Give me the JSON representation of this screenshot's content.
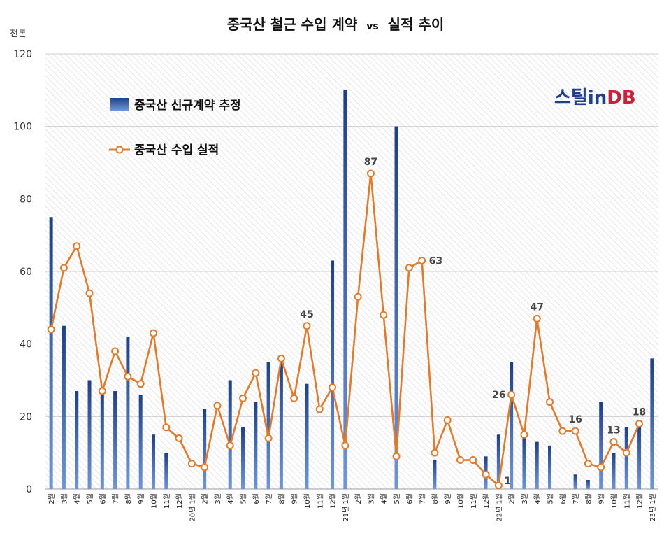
{
  "chart_data": {
    "type": "bar+line",
    "title": "중국산 철근 수입 계약 vs 실적 추이",
    "title_main": "중국산 철근 수입 계약",
    "title_vs": "vs",
    "title_tail": "실적 추이",
    "unit": "천톤",
    "ylim": [
      0,
      120
    ],
    "yticks": [
      0,
      20,
      40,
      60,
      80,
      100,
      120
    ],
    "grid": true,
    "legend_position": "top-left",
    "categories": [
      "2월",
      "3월",
      "4월",
      "5월",
      "6월",
      "7월",
      "8월",
      "9월",
      "10월",
      "11월",
      "12월",
      "20년 1월",
      "2월",
      "3월",
      "4월",
      "5월",
      "6월",
      "7월",
      "8월",
      "9월",
      "10월",
      "11월",
      "12월",
      "21년 1월",
      "2월",
      "3월",
      "4월",
      "5월",
      "6월",
      "7월",
      "8월",
      "9월",
      "10월",
      "11월",
      "12월",
      "22년 1월",
      "2월",
      "3월",
      "4월",
      "5월",
      "6월",
      "7월",
      "8월",
      "9월",
      "10월",
      "11월",
      "12월",
      "23년 1월"
    ],
    "series": [
      {
        "name": "중국산 신규계약 추정",
        "type": "bar",
        "color": "#2a4f96",
        "values": [
          75,
          45,
          27,
          30,
          27,
          27,
          42,
          26,
          15,
          10,
          0,
          0,
          22,
          0,
          30,
          17,
          24,
          35,
          35,
          0,
          29,
          0,
          63,
          110,
          0,
          0,
          0,
          100,
          0,
          0,
          8,
          0,
          0,
          0,
          9,
          15,
          35,
          15,
          13,
          12,
          0,
          4,
          2.5,
          24,
          10,
          17,
          18,
          36
        ]
      },
      {
        "name": "중국산 수입 실적",
        "type": "line",
        "color": "#e07b2e",
        "values": [
          44,
          61,
          67,
          54,
          27,
          38,
          31,
          29,
          43,
          17,
          14,
          7,
          6,
          23,
          12,
          25,
          32,
          14,
          36,
          25,
          45,
          22,
          28,
          12,
          53,
          87,
          48,
          9,
          61,
          63,
          10,
          19,
          8,
          8,
          4,
          1,
          26,
          15,
          47,
          24,
          16,
          16,
          7,
          6,
          13,
          10,
          18,
          null
        ]
      }
    ],
    "data_labels": [
      {
        "index": 20,
        "value": 45
      },
      {
        "index": 25,
        "value": 87
      },
      {
        "index": 29,
        "value": 63
      },
      {
        "index": 35,
        "value": 1
      },
      {
        "index": 36,
        "value": 26
      },
      {
        "index": 38,
        "value": 47
      },
      {
        "index": 41,
        "value": 16
      },
      {
        "index": 44,
        "value": 13
      },
      {
        "index": 46,
        "value": 18
      }
    ],
    "logo": {
      "part1": "스틸",
      "part2": "in",
      "part3": "DB"
    }
  }
}
